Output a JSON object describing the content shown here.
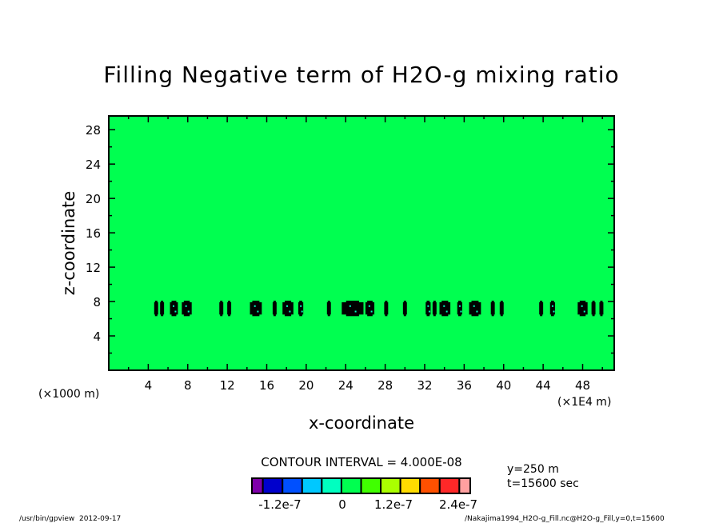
{
  "chart_data": {
    "type": "heatmap",
    "title": "Filling Negative term of H2O-g mixing ratio",
    "xlabel": "x-coordinate",
    "ylabel": "z-coordinate",
    "x_unit_left": "(×1000 m)",
    "x_unit_right": "(×1E4 m)",
    "xlim": [
      0,
      51.2
    ],
    "ylim": [
      0,
      29.6
    ],
    "x_ticks": [
      4,
      8,
      12,
      16,
      20,
      24,
      28,
      32,
      36,
      40,
      44,
      48
    ],
    "y_ticks": [
      4,
      8,
      12,
      16,
      20,
      24,
      28
    ],
    "background_value": 0,
    "background_color": "#00ff50",
    "nonzero_band_z": [
      6.3,
      8.1
    ],
    "nonzero_regions_x": [
      [
        4.6,
        5.0
      ],
      [
        5.2,
        5.6
      ],
      [
        6.2,
        7.0
      ],
      [
        7.4,
        8.4
      ],
      [
        11.2,
        11.6
      ],
      [
        12.0,
        12.4
      ],
      [
        14.3,
        15.5
      ],
      [
        16.6,
        17.0
      ],
      [
        17.6,
        18.7
      ],
      [
        19.2,
        19.7
      ],
      [
        22.1,
        22.5
      ],
      [
        23.6,
        25.8
      ],
      [
        26.0,
        26.9
      ],
      [
        27.9,
        28.3
      ],
      [
        29.8,
        30.2
      ],
      [
        32.1,
        32.6
      ],
      [
        32.8,
        33.2
      ],
      [
        33.5,
        34.6
      ],
      [
        35.3,
        35.8
      ],
      [
        36.5,
        37.7
      ],
      [
        38.7,
        39.1
      ],
      [
        39.6,
        40.0
      ],
      [
        43.6,
        44.0
      ],
      [
        44.7,
        45.2
      ],
      [
        47.5,
        48.5
      ],
      [
        48.9,
        49.3
      ],
      [
        49.7,
        50.1
      ]
    ],
    "contour_interval": "CONTOUR INTERVAL = 4.000E-08",
    "colorbar": {
      "colors": [
        "#7f00aa",
        "#0000cc",
        "#0050ff",
        "#00c8ff",
        "#00ffc0",
        "#00ff50",
        "#40ff00",
        "#aaff00",
        "#ffdc00",
        "#ff5000",
        "#ff2828",
        "#ffa0a0"
      ],
      "labels": [
        "-1.2e-7",
        "0",
        "1.2e-7",
        "2.4e-7"
      ]
    },
    "info": [
      "y=250 m",
      "t=15600 sec"
    ]
  },
  "footer": {
    "left": "/usr/bin/gpview  2012-09-17",
    "right": "/Nakajima1994_H2O-g_Fill.nc@H2O-g_Fill,y=0,t=15600"
  }
}
